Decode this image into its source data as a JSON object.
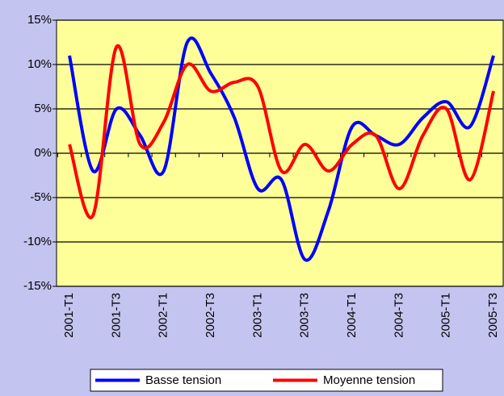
{
  "chart_data": {
    "type": "line",
    "categories": [
      "2001-T1",
      null,
      "2001-T3",
      null,
      "2002-T1",
      null,
      "2002-T3",
      null,
      "2003-T1",
      null,
      "2003-T3",
      null,
      "2004-T1",
      null,
      "2004-T3",
      null,
      "2005-T1",
      null,
      "2005-T3"
    ],
    "series": [
      {
        "name": "Basse tension",
        "color": "#0000ff",
        "values": [
          11,
          -2,
          5,
          2,
          -2,
          12.5,
          9,
          4,
          -4,
          -3,
          -12,
          -6.4,
          3,
          2,
          1,
          4,
          5.8,
          3,
          11
        ]
      },
      {
        "name": "Moyenne tension",
        "color": "#ff0000",
        "values": [
          1,
          -7,
          12,
          1,
          3.5,
          10,
          7,
          8,
          7.5,
          -2,
          1,
          -2,
          1,
          2,
          -4,
          2,
          5,
          -3,
          7
        ]
      }
    ],
    "ylim": [
      -15,
      15
    ],
    "yticks": [
      {
        "value": -15,
        "label": "-15%"
      },
      {
        "value": -10,
        "label": "-10%"
      },
      {
        "value": -5,
        "label": "-5%"
      },
      {
        "value": 0,
        "label": "0%"
      },
      {
        "value": 5,
        "label": "5%"
      },
      {
        "value": 10,
        "label": "10%"
      },
      {
        "value": 15,
        "label": "15%"
      }
    ],
    "grid": true,
    "smooth": true,
    "legend": "bottom"
  }
}
